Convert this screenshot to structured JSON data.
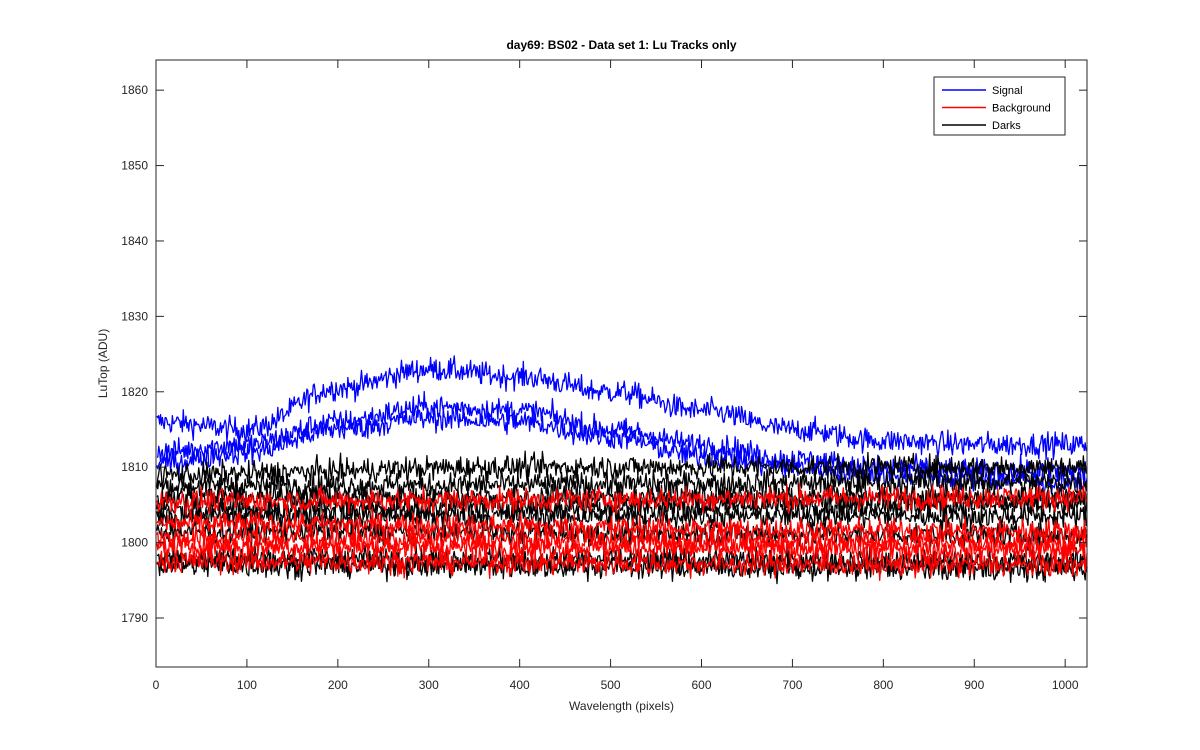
{
  "chart_data": {
    "type": "line",
    "title": "day69: BS02 - Data set 1: Lu Tracks only",
    "xlabel": "Wavelength (pixels)",
    "ylabel": "LuTop (ADU)",
    "xlim": [
      0,
      1024
    ],
    "ylim": [
      1783.5,
      1864
    ],
    "xticks": [
      0,
      100,
      200,
      300,
      400,
      500,
      600,
      700,
      800,
      900,
      1000
    ],
    "yticks": [
      1790,
      1800,
      1810,
      1820,
      1830,
      1840,
      1850,
      1860
    ],
    "grid": false,
    "legend": "top-right",
    "x_range": [
      1,
      1024
    ],
    "series": [
      {
        "name": "Signal",
        "color": "#0000ff",
        "tracks": [
          {
            "x": [
              1,
              100,
              200,
              300,
              400,
              500,
              600,
              700,
              800,
              900,
              1024
            ],
            "y": [
              1816,
              1815,
              1820.5,
              1823,
              1822,
              1820,
              1817.5,
              1815,
              1813.5,
              1813,
              1813
            ]
          },
          {
            "x": [
              1,
              100,
              200,
              300,
              400,
              500,
              600,
              700,
              800,
              900,
              1024
            ],
            "y": [
              1812,
              1813,
              1816,
              1818,
              1817.5,
              1815,
              1813,
              1811,
              1810,
              1809.5,
              1809.5
            ]
          },
          {
            "x": [
              1,
              100,
              200,
              300,
              400,
              500,
              600,
              700,
              800,
              900,
              1024
            ],
            "y": [
              1810.5,
              1812,
              1815,
              1816.5,
              1816,
              1814,
              1811.5,
              1810,
              1809,
              1808.5,
              1808
            ]
          }
        ]
      },
      {
        "name": "Background",
        "color": "#ff0000",
        "tracks": [
          {
            "x": [
              1,
              1024
            ],
            "y": [
              1805.5,
              1806
            ]
          },
          {
            "x": [
              1,
              1024
            ],
            "y": [
              1802.5,
              1801.5
            ]
          },
          {
            "x": [
              1,
              1024
            ],
            "y": [
              1800.5,
              1800
            ]
          },
          {
            "x": [
              1,
              1024
            ],
            "y": [
              1799.5,
              1799
            ]
          },
          {
            "x": [
              1,
              1024
            ],
            "y": [
              1797.5,
              1797
            ]
          }
        ]
      },
      {
        "name": "Darks",
        "color": "#000000",
        "tracks": [
          {
            "x": [
              1,
              400,
              1024
            ],
            "y": [
              1809,
              1810,
              1810
            ]
          },
          {
            "x": [
              1,
              1024
            ],
            "y": [
              1807.5,
              1808
            ]
          },
          {
            "x": [
              1,
              1024
            ],
            "y": [
              1806,
              1806
            ]
          },
          {
            "x": [
              1,
              1024
            ],
            "y": [
              1804.5,
              1805
            ]
          },
          {
            "x": [
              1,
              1024
            ],
            "y": [
              1803.5,
              1803.5
            ]
          },
          {
            "x": [
              1,
              1024
            ],
            "y": [
              1801.5,
              1801
            ]
          },
          {
            "x": [
              1,
              1024
            ],
            "y": [
              1798,
              1797.5
            ]
          },
          {
            "x": [
              1,
              1024
            ],
            "y": [
              1797,
              1796.5
            ]
          }
        ]
      }
    ]
  }
}
